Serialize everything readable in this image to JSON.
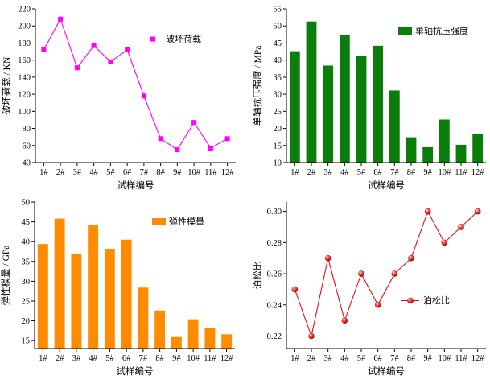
{
  "chart_data": [
    {
      "type": "line",
      "categories": [
        "1#",
        "2#",
        "3#",
        "4#",
        "5#",
        "6#",
        "7#",
        "8#",
        "9#",
        "10#",
        "11#",
        "12#"
      ],
      "series": [
        {
          "name": "破坏荷载",
          "values": [
            172,
            208,
            151,
            177,
            158,
            172,
            118,
            68,
            55,
            87,
            57,
            68
          ],
          "color": "#ff00ff",
          "marker": "square"
        }
      ],
      "xlabel": "试样编号",
      "ylabel": "破坏荷载 / KN",
      "ylim": [
        40,
        220
      ],
      "yticks": [
        40,
        60,
        80,
        100,
        120,
        140,
        160,
        180,
        200,
        220
      ],
      "legend": "top-right",
      "grid": false
    },
    {
      "type": "bar",
      "categories": [
        "1#",
        "2#",
        "3#",
        "4#",
        "5#",
        "6#",
        "7#",
        "8#",
        "9#",
        "10#",
        "11#",
        "12#"
      ],
      "series": [
        {
          "name": "单轴抗压强度",
          "values": [
            42.6,
            51.3,
            38.4,
            47.4,
            41.3,
            44.2,
            31.1,
            17.4,
            14.5,
            22.6,
            15.2,
            18.4
          ],
          "color": "#0a7d0a"
        }
      ],
      "xlabel": "试样编号",
      "ylabel": "单轴抗压强度 / MPa",
      "ylim": [
        10,
        55
      ],
      "yticks": [
        10,
        15,
        20,
        25,
        30,
        35,
        40,
        45,
        50,
        55
      ],
      "legend": "top-right",
      "grid": false
    },
    {
      "type": "bar",
      "categories": [
        "1#",
        "2#",
        "3#",
        "4#",
        "5#",
        "6#",
        "7#",
        "8#",
        "9#",
        "10#",
        "11#",
        "12#"
      ],
      "series": [
        {
          "name": "弹性模量",
          "values": [
            39.4,
            45.8,
            36.9,
            44.2,
            38.2,
            40.5,
            28.4,
            22.6,
            15.9,
            20.4,
            18.1,
            16.6
          ],
          "color": "#ff8c00"
        }
      ],
      "xlabel": "试样编号",
      "ylabel": "弹性模量 / GPa",
      "ylim": [
        13,
        50
      ],
      "yticks": [
        15,
        20,
        25,
        30,
        35,
        40,
        45,
        50
      ],
      "legend": "top-right",
      "grid": false
    },
    {
      "type": "line",
      "categories": [
        "1#",
        "2#",
        "3#",
        "4#",
        "5#",
        "6#",
        "7#",
        "8#",
        "9#",
        "10#",
        "11#",
        "12#"
      ],
      "series": [
        {
          "name": "泊松比",
          "values": [
            0.25,
            0.22,
            0.27,
            0.23,
            0.26,
            0.24,
            0.26,
            0.27,
            0.3,
            0.28,
            0.29,
            0.3
          ],
          "color": "#e01010",
          "marker": "ball"
        }
      ],
      "xlabel": "试样编号",
      "ylabel": "泊松比",
      "ylim": [
        0.212,
        0.306
      ],
      "yticks": [
        0.22,
        0.24,
        0.26,
        0.28,
        0.3
      ],
      "ytick_format": "0.00",
      "legend": "bottom-right",
      "grid": false
    }
  ]
}
